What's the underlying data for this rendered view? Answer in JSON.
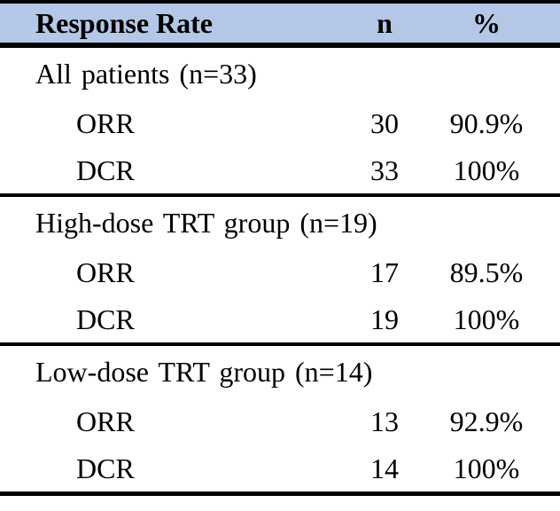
{
  "table": {
    "header": {
      "label": "Response Rate",
      "n": "n",
      "percent": "%",
      "bg_color": "#b4c7e7",
      "border_color": "#000000",
      "text_color": "#000000"
    },
    "sections": [
      {
        "label": "All patients (n=33)",
        "rows": [
          {
            "name": "ORR",
            "n": "30",
            "pct": "90.9%"
          },
          {
            "name": "DCR",
            "n": "33",
            "pct": "100%"
          }
        ]
      },
      {
        "label": "High-dose TRT group (n=19)",
        "rows": [
          {
            "name": "ORR",
            "n": "17",
            "pct": "89.5%"
          },
          {
            "name": "DCR",
            "n": "19",
            "pct": "100%"
          }
        ]
      },
      {
        "label": "Low-dose TRT group (n=14)",
        "rows": [
          {
            "name": "ORR",
            "n": "13",
            "pct": "92.9%"
          },
          {
            "name": "DCR",
            "n": "14",
            "pct": "100%"
          }
        ]
      }
    ]
  },
  "chart_data": {
    "type": "table",
    "title": "Response Rate",
    "columns": [
      "Response Rate",
      "n",
      "%"
    ],
    "rows": [
      [
        "All patients (n=33)",
        "",
        ""
      ],
      [
        "ORR",
        "30",
        "90.9%"
      ],
      [
        "DCR",
        "33",
        "100%"
      ],
      [
        "High-dose TRT group (n=19)",
        "",
        ""
      ],
      [
        "ORR",
        "17",
        "89.5%"
      ],
      [
        "DCR",
        "19",
        "100%"
      ],
      [
        "Low-dose TRT group (n=14)",
        "",
        ""
      ],
      [
        "ORR",
        "13",
        "92.9%"
      ],
      [
        "DCR",
        "14",
        "100%"
      ]
    ]
  }
}
